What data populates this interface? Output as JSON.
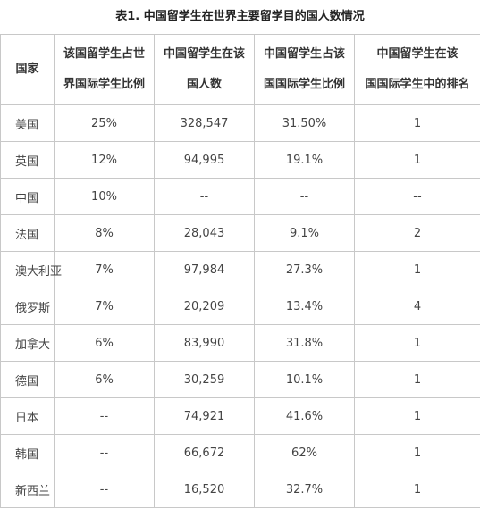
{
  "caption": "表1. 中国留学生在世界主要留学目的国人数情况",
  "headers": [
    {
      "line1": "国家",
      "line2": ""
    },
    {
      "line1": "该国留学生占世",
      "line2": "界国际学生比例"
    },
    {
      "line1": "中国留学生在该",
      "line2": "国人数"
    },
    {
      "line1": "中国留学生占该",
      "line2": "国国际学生比例"
    },
    {
      "line1": "中国留学生在该",
      "line2": "国国际学生中的排名"
    }
  ],
  "rows": [
    [
      "美国",
      "25%",
      "328,547",
      "31.50%",
      "1"
    ],
    [
      "英国",
      "12%",
      "94,995",
      "19.1%",
      "1"
    ],
    [
      "中国",
      "10%",
      "--",
      "--",
      "--"
    ],
    [
      "法国",
      "8%",
      "28,043",
      "9.1%",
      "2"
    ],
    [
      "澳大利亚",
      "7%",
      "97,984",
      "27.3%",
      "1"
    ],
    [
      "俄罗斯",
      "7%",
      "20,209",
      "13.4%",
      "4"
    ],
    [
      "加拿大",
      "6%",
      "83,990",
      "31.8%",
      "1"
    ],
    [
      "德国",
      "6%",
      "30,259",
      "10.1%",
      "1"
    ],
    [
      "日本",
      "--",
      "74,921",
      "41.6%",
      "1"
    ],
    [
      "韩国",
      "--",
      "66,672",
      "62%",
      "1"
    ],
    [
      "新西兰",
      "--",
      "16,520",
      "32.7%",
      "1"
    ]
  ]
}
